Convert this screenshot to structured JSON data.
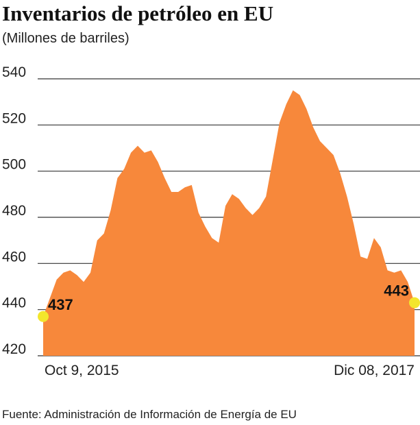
{
  "chart_data": {
    "type": "area",
    "title": "Inventarios de petróleo en EU",
    "subtitle": "(Millones de barriles)",
    "source": "Fuente: Administración de Información de Energía de EU",
    "categories": [
      "Oct 9, 2015",
      null,
      null,
      null,
      null,
      null,
      null,
      null,
      null,
      null,
      null,
      null,
      null,
      null,
      null,
      null,
      null,
      null,
      null,
      null,
      null,
      null,
      null,
      null,
      null,
      null,
      null,
      null,
      null,
      null,
      null,
      null,
      null,
      null,
      null,
      null,
      null,
      null,
      null,
      null,
      null,
      null,
      null,
      null,
      null,
      null,
      null,
      null,
      null,
      null,
      null,
      null,
      null,
      null,
      null,
      "Dic 08, 2017"
    ],
    "values": [
      437,
      445,
      453,
      456,
      457,
      455,
      452,
      456,
      470,
      473,
      483,
      497,
      501,
      508,
      511,
      508,
      509,
      504,
      497,
      491,
      491,
      493,
      494,
      482,
      476,
      471,
      469,
      485,
      490,
      488,
      484,
      481,
      484,
      489,
      505,
      521,
      529,
      535,
      533,
      527,
      519,
      513,
      510,
      507,
      499,
      489,
      477,
      463,
      462,
      471,
      467,
      457,
      456,
      457,
      452,
      443
    ],
    "color": "#f7883b",
    "marker_color": "#f3e62c",
    "ylim": [
      420,
      540
    ],
    "yticks": [
      420,
      440,
      460,
      480,
      500,
      520,
      540
    ],
    "grid": true
  }
}
